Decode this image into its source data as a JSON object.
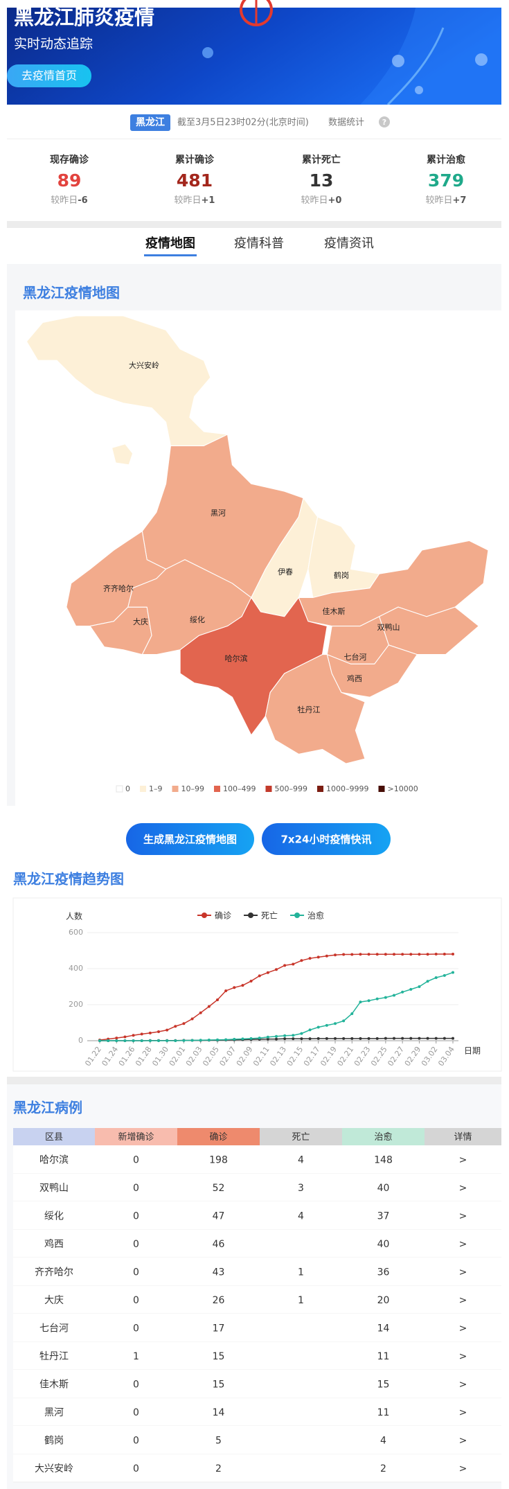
{
  "header": {
    "title": "黑龙江肺炎疫情",
    "subtitle": "实时动态追踪",
    "button": "去疫情首页"
  },
  "info": {
    "region": "黑龙江",
    "update": "截至3月5日23时02分(北京时间)",
    "suffix": "数据统计",
    "help": "?"
  },
  "stats": [
    {
      "label": "现存确诊",
      "value": 89,
      "color": "#e2433e",
      "delta_label": "较昨日",
      "delta": "-6"
    },
    {
      "label": "累计确诊",
      "value": 481,
      "color": "#a3261c",
      "delta_label": "较昨日",
      "delta": "+1"
    },
    {
      "label": "累计死亡",
      "value": 13,
      "color": "#333333",
      "delta_label": "较昨日",
      "delta": "+0"
    },
    {
      "label": "累计治愈",
      "value": 379,
      "color": "#1fa98a",
      "delta_label": "较昨日",
      "delta": "+7"
    }
  ],
  "tabs": [
    "疫情地图",
    "疫情科普",
    "疫情资讯"
  ],
  "active_tab": 0,
  "map": {
    "title": "黑龙江疫情地图",
    "regions": [
      {
        "name": "大兴安岭",
        "color": "#fdf0d7"
      },
      {
        "name": "黑河",
        "color": "#f2ab8c"
      },
      {
        "name": "齐齐哈尔",
        "color": "#f2ab8c"
      },
      {
        "name": "大庆",
        "color": "#f2ab8c"
      },
      {
        "name": "绥化",
        "color": "#f2ab8c"
      },
      {
        "name": "伊春",
        "color": "#fdf0d7"
      },
      {
        "name": "鹤岗",
        "color": "#fdf0d7"
      },
      {
        "name": "佳木斯",
        "color": "#f2ab8c"
      },
      {
        "name": "双鸭山",
        "color": "#f2ab8c"
      },
      {
        "name": "七台河",
        "color": "#f2ab8c"
      },
      {
        "name": "鸡西",
        "color": "#f2ab8c"
      },
      {
        "name": "哈尔滨",
        "color": "#e2654f"
      },
      {
        "name": "牡丹江",
        "color": "#f2ab8c"
      }
    ],
    "legend": [
      {
        "label": "0",
        "color": "#ffffff"
      },
      {
        "label": "1–9",
        "color": "#fdf0d7"
      },
      {
        "label": "10–99",
        "color": "#f2ab8c"
      },
      {
        "label": "100–499",
        "color": "#e2654f"
      },
      {
        "label": "500–999",
        "color": "#c33a2b"
      },
      {
        "label": "1000–9999",
        "color": "#7c1e12"
      },
      {
        "label": ">10000",
        "color": "#470e07"
      }
    ]
  },
  "buttons": [
    "生成黑龙江疫情地图",
    "7x24小时疫情快讯"
  ],
  "chart_data": {
    "type": "line",
    "title": "黑龙江疫情趋势图",
    "y_label": "人数",
    "x_label": "日期",
    "categories": [
      "01.22",
      null,
      "01.24",
      null,
      "01.26",
      null,
      "01.28",
      null,
      "01.30",
      null,
      "02.01",
      null,
      "02.03",
      null,
      "02.05",
      null,
      "02.07",
      null,
      "02.09",
      null,
      "02.11",
      null,
      "02.13",
      null,
      "02.15",
      null,
      "02.17",
      null,
      "02.19",
      null,
      "02.21",
      null,
      "02.23",
      null,
      "02.25",
      null,
      "02.27",
      null,
      "02.29",
      null,
      "03.02",
      null,
      "03.04"
    ],
    "series": [
      {
        "name": "确诊",
        "color": "#c8352a",
        "values": [
          4,
          9,
          15,
          21,
          30,
          37,
          43,
          50,
          59,
          80,
          95,
          121,
          155,
          190,
          227,
          277,
          295,
          307,
          331,
          360,
          378,
          395,
          418,
          425,
          445,
          457,
          464,
          470,
          476,
          479,
          479,
          480,
          480,
          480,
          480,
          480,
          480,
          480,
          480,
          480,
          481,
          481,
          481
        ]
      },
      {
        "name": "死亡",
        "color": "#333333",
        "values": [
          0,
          0,
          0,
          0,
          0,
          0,
          1,
          1,
          1,
          1,
          2,
          2,
          2,
          3,
          3,
          4,
          5,
          6,
          7,
          8,
          9,
          9,
          11,
          11,
          11,
          11,
          12,
          12,
          12,
          12,
          12,
          12,
          12,
          12,
          13,
          13,
          13,
          13,
          13,
          13,
          13,
          13,
          13
        ]
      },
      {
        "name": "治愈",
        "color": "#23b39a",
        "values": [
          0,
          0,
          0,
          0,
          0,
          0,
          0,
          0,
          0,
          0,
          1,
          2,
          3,
          4,
          5,
          6,
          8,
          10,
          12,
          15,
          20,
          24,
          28,
          30,
          40,
          60,
          75,
          85,
          95,
          110,
          150,
          215,
          222,
          232,
          240,
          252,
          270,
          285,
          300,
          330,
          350,
          362,
          379
        ]
      }
    ],
    "ylim": [
      0,
      600
    ],
    "yticks": [
      0,
      200,
      400,
      600
    ],
    "grid": true
  },
  "table": {
    "title": "黑龙江病例",
    "header": [
      "区县",
      "新增确诊",
      "确诊",
      "死亡",
      "治愈",
      "详情"
    ],
    "header_colors": [
      "#c8d2f0",
      "#f8bcae",
      "#ee8a6d",
      "#d5d5d5",
      "#c0e9d8",
      "#d5d5d5"
    ],
    "rows": [
      [
        "哈尔滨",
        0,
        198,
        4,
        148,
        ">"
      ],
      [
        "双鸭山",
        0,
        52,
        3,
        40,
        ">"
      ],
      [
        "绥化",
        0,
        47,
        4,
        37,
        ">"
      ],
      [
        "鸡西",
        0,
        46,
        null,
        40,
        ">"
      ],
      [
        "齐齐哈尔",
        0,
        43,
        1,
        36,
        ">"
      ],
      [
        "大庆",
        0,
        26,
        1,
        20,
        ">"
      ],
      [
        "七台河",
        0,
        17,
        null,
        14,
        ">"
      ],
      [
        "牡丹江",
        1,
        15,
        null,
        11,
        ">"
      ],
      [
        "佳木斯",
        0,
        15,
        null,
        15,
        ">"
      ],
      [
        "黑河",
        0,
        14,
        null,
        11,
        ">"
      ],
      [
        "鹤岗",
        0,
        5,
        null,
        4,
        ">"
      ],
      [
        "大兴安岭",
        0,
        2,
        null,
        2,
        ">"
      ]
    ]
  }
}
